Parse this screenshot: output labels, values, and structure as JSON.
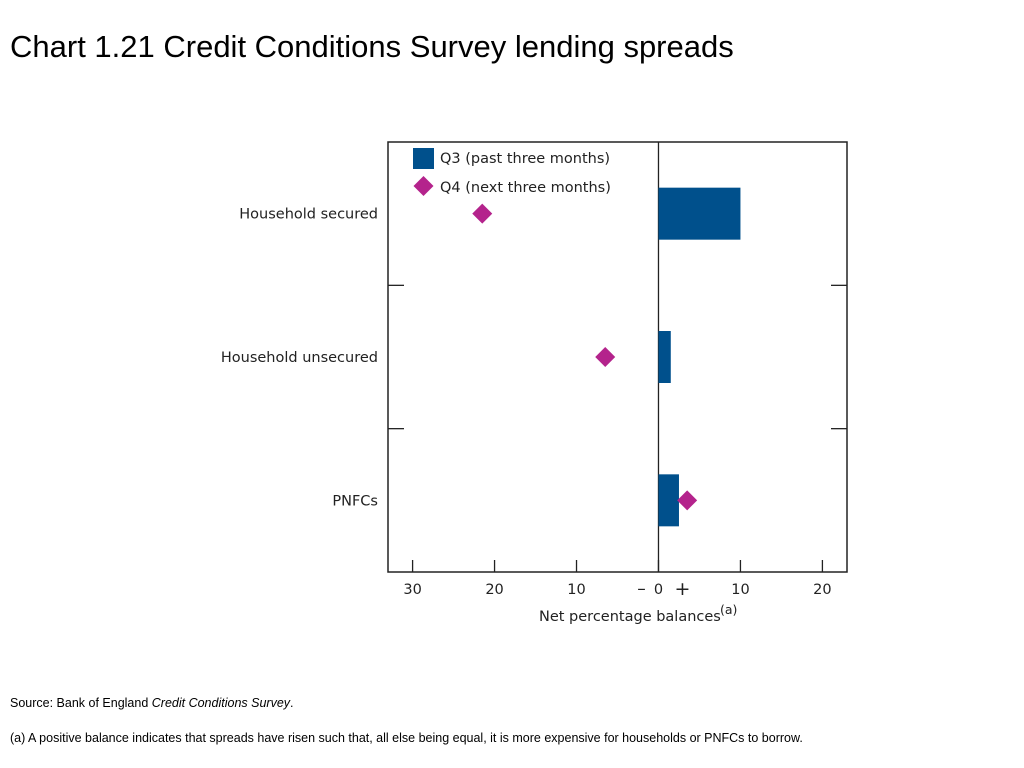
{
  "page": {
    "title": "Chart 1.21  Credit Conditions Survey lending spreads",
    "source_prefix": "Source:  Bank of England ",
    "source_italic": "Credit Conditions Survey",
    "source_suffix": ".",
    "footnote": "(a)  A positive balance indicates that spreads have risen such that, all else being equal, it is more expensive for households or PNFCs to borrow."
  },
  "chart_data": {
    "type": "bar",
    "orientation": "horizontal",
    "categories": [
      "Household secured",
      "Household unsecured",
      "PNFCs"
    ],
    "series": [
      {
        "name": "Q3 (past three months)",
        "kind": "bar",
        "color": "#00508c",
        "values": [
          10,
          1.5,
          2.5
        ]
      },
      {
        "name": "Q4 (next three months)",
        "kind": "marker-diamond",
        "color": "#b4238c",
        "values": [
          -21.5,
          -6.5,
          3.5
        ]
      }
    ],
    "xlabel": "Net percentage balances",
    "xlabel_superscript": "(a)",
    "xlim": [
      -33,
      23
    ],
    "x_ticks": [
      -30,
      -20,
      -10,
      0,
      10,
      20
    ],
    "x_tick_labels": [
      "30",
      "20",
      "10",
      "0",
      "10",
      "20"
    ],
    "minus_sign": "–",
    "plus_sign": "+",
    "legend_position": "top-left",
    "grid": false
  }
}
